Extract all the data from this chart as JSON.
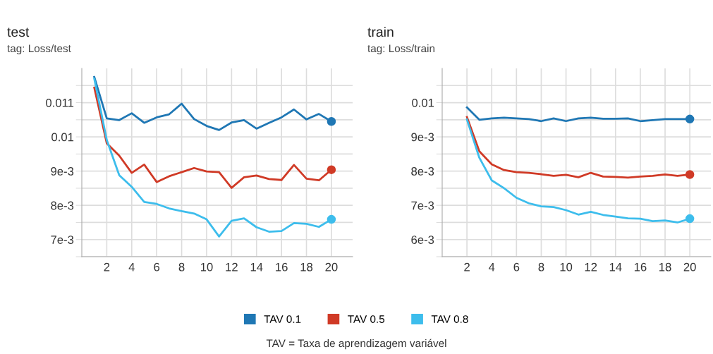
{
  "chart_data": [
    {
      "type": "line",
      "title": "test",
      "subtitle": "tag: Loss/test",
      "x": [
        1,
        2,
        3,
        4,
        5,
        6,
        7,
        8,
        9,
        10,
        11,
        12,
        13,
        14,
        15,
        16,
        17,
        18,
        19,
        20
      ],
      "series": [
        {
          "name": "TAV 0.1",
          "color": "#1f77b4",
          "values": [
            0.01175,
            0.01054,
            0.01049,
            0.01069,
            0.01041,
            0.01057,
            0.01066,
            0.01097,
            0.01052,
            0.01032,
            0.0102,
            0.01042,
            0.01049,
            0.01024,
            0.01041,
            0.01057,
            0.0108,
            0.01051,
            0.01067,
            0.01045
          ]
        },
        {
          "name": "TAV 0.5",
          "color": "#d03a26",
          "values": [
            0.01144,
            0.00981,
            0.00945,
            0.00895,
            0.00919,
            0.00868,
            0.00885,
            0.00897,
            0.00909,
            0.00899,
            0.00897,
            0.00851,
            0.00882,
            0.00887,
            0.00877,
            0.00874,
            0.00918,
            0.00878,
            0.00873,
            0.00904
          ]
        },
        {
          "name": "TAV 0.8",
          "color": "#3dbdec",
          "values": [
            0.0117,
            0.00991,
            0.00888,
            0.00854,
            0.0081,
            0.00804,
            0.00791,
            0.00783,
            0.00776,
            0.00759,
            0.00709,
            0.00755,
            0.00762,
            0.00736,
            0.00723,
            0.00725,
            0.00748,
            0.00746,
            0.00737,
            0.00759
          ]
        }
      ],
      "xlim": [
        0,
        21.7
      ],
      "xticks": [
        2,
        4,
        6,
        8,
        10,
        12,
        14,
        16,
        18,
        20
      ],
      "ylim": [
        0.0065,
        0.012
      ],
      "yticks": [
        {
          "value": 0.0065,
          "label": null
        },
        {
          "value": 0.007,
          "label": "7e-3"
        },
        {
          "value": 0.0075,
          "label": null
        },
        {
          "value": 0.008,
          "label": "8e-3"
        },
        {
          "value": 0.0085,
          "label": null
        },
        {
          "value": 0.009,
          "label": "9e-3"
        },
        {
          "value": 0.0095,
          "label": null
        },
        {
          "value": 0.01,
          "label": "0.01"
        },
        {
          "value": 0.0105,
          "label": null
        },
        {
          "value": 0.011,
          "label": "0.011"
        },
        {
          "value": 0.0115,
          "label": null
        }
      ],
      "grid": true,
      "legend": "bottom",
      "annotations": [
        "TAV = Taxa de aprendizagem variável"
      ]
    },
    {
      "type": "line",
      "title": "train",
      "subtitle": "tag: Loss/train",
      "x": [
        2,
        3,
        4,
        5,
        6,
        7,
        8,
        9,
        10,
        11,
        12,
        13,
        14,
        15,
        16,
        17,
        18,
        19,
        20
      ],
      "series": [
        {
          "name": "TAV 0.1",
          "color": "#1f77b4",
          "values": [
            0.00986,
            0.0095,
            0.00954,
            0.00956,
            0.00954,
            0.00952,
            0.00946,
            0.00954,
            0.00946,
            0.00954,
            0.00956,
            0.00953,
            0.00953,
            0.00954,
            0.00946,
            0.00949,
            0.00952,
            0.00952,
            0.00952
          ]
        },
        {
          "name": "TAV 0.5",
          "color": "#d03a26",
          "values": [
            0.00958,
            0.00858,
            0.0082,
            0.00803,
            0.00797,
            0.00795,
            0.00791,
            0.00786,
            0.00789,
            0.00782,
            0.00795,
            0.00784,
            0.00783,
            0.00781,
            0.00784,
            0.00786,
            0.0079,
            0.00786,
            0.0079
          ]
        },
        {
          "name": "TAV 0.8",
          "color": "#3dbdec",
          "values": [
            0.00951,
            0.00839,
            0.00773,
            0.0075,
            0.00722,
            0.00706,
            0.00697,
            0.00695,
            0.00686,
            0.00673,
            0.00681,
            0.00672,
            0.00667,
            0.00662,
            0.00661,
            0.00654,
            0.00656,
            0.0065,
            0.00661
          ]
        }
      ],
      "xlim": [
        0,
        21.7
      ],
      "xticks": [
        2,
        4,
        6,
        8,
        10,
        12,
        14,
        16,
        18,
        20
      ],
      "ylim": [
        0.0055,
        0.011
      ],
      "yticks": [
        {
          "value": 0.0055,
          "label": null
        },
        {
          "value": 0.006,
          "label": "6e-3"
        },
        {
          "value": 0.0065,
          "label": null
        },
        {
          "value": 0.007,
          "label": "7e-3"
        },
        {
          "value": 0.0075,
          "label": null
        },
        {
          "value": 0.008,
          "label": "8e-3"
        },
        {
          "value": 0.0085,
          "label": null
        },
        {
          "value": 0.009,
          "label": "9e-3"
        },
        {
          "value": 0.0095,
          "label": null
        },
        {
          "value": 0.01,
          "label": "0.01"
        },
        {
          "value": 0.0105,
          "label": null
        }
      ],
      "grid": true
    }
  ]
}
